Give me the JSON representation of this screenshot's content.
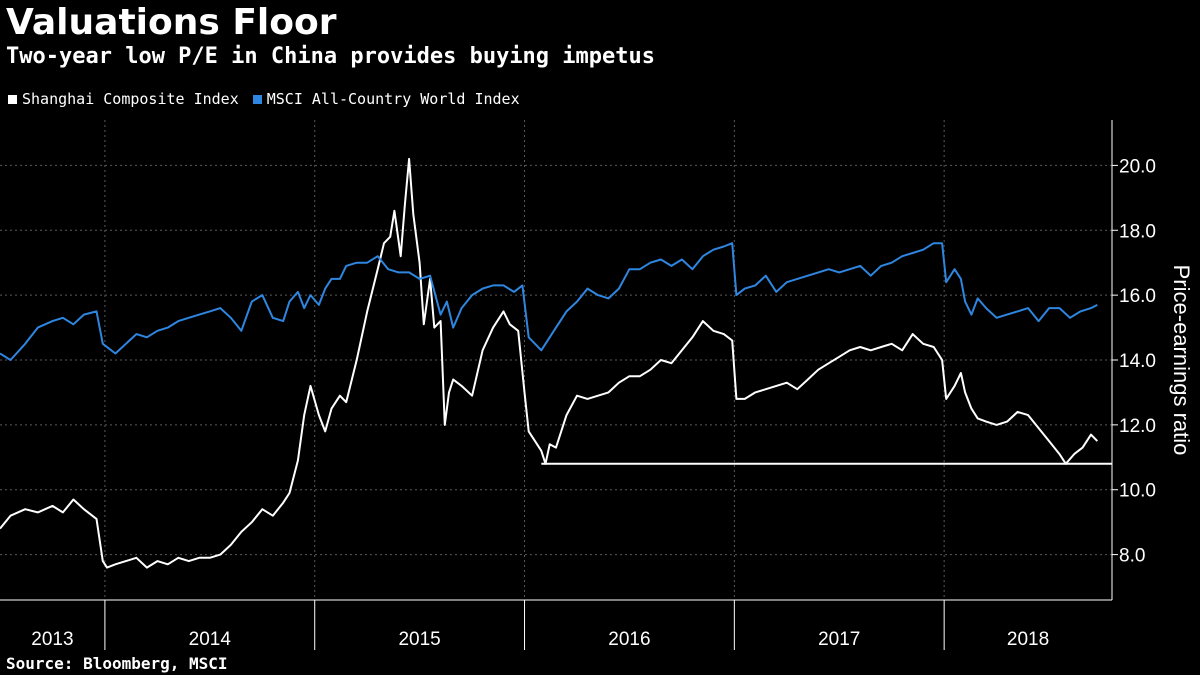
{
  "title": "Valuations Floor",
  "subtitle": "Two-year low P/E in China provides buying impetus",
  "source": "Source: Bloomberg, MSCI",
  "colors": {
    "background": "#000000",
    "shanghai": "#ffffff",
    "msci": "#2f86e0",
    "grid": "#5a5a5a"
  },
  "chart_data": {
    "type": "line",
    "title": "Valuations Floor",
    "subtitle": "Two-year low P/E in China provides buying impetus",
    "ylabel": "Price-earnings ratio",
    "xlabel": "",
    "ylim": [
      6.6,
      21.4
    ],
    "y_ticks": [
      8.0,
      10.0,
      12.0,
      14.0,
      16.0,
      18.0,
      20.0
    ],
    "y_tick_labels": [
      "8.0",
      "10.0",
      "12.0",
      "14.0",
      "16.0",
      "18.0",
      "20.0"
    ],
    "y_axis_side": "right",
    "x_range": [
      2013.5,
      2018.8
    ],
    "x_ticks": [
      2014,
      2015,
      2016,
      2017,
      2018
    ],
    "x_tick_labels": [
      "2013",
      "2014",
      "2015",
      "2016",
      "2017",
      "2018"
    ],
    "grid": true,
    "legend_position": "top-left",
    "series": [
      {
        "name": "Shanghai Composite Index",
        "color": "#ffffff",
        "x": [
          2013.5,
          2013.55,
          2013.62,
          2013.68,
          2013.75,
          2013.8,
          2013.85,
          2013.9,
          2013.96,
          2013.99,
          2014.01,
          2014.05,
          2014.1,
          2014.15,
          2014.2,
          2014.25,
          2014.3,
          2014.35,
          2014.4,
          2014.45,
          2014.5,
          2014.55,
          2014.6,
          2014.65,
          2014.7,
          2014.75,
          2014.8,
          2014.85,
          2014.88,
          2014.92,
          2014.95,
          2014.98,
          2015.02,
          2015.05,
          2015.08,
          2015.12,
          2015.15,
          2015.2,
          2015.25,
          2015.3,
          2015.33,
          2015.36,
          2015.38,
          2015.41,
          2015.43,
          2015.45,
          2015.47,
          2015.5,
          2015.52,
          2015.55,
          2015.57,
          2015.6,
          2015.62,
          2015.64,
          2015.66,
          2015.7,
          2015.75,
          2015.8,
          2015.85,
          2015.9,
          2015.93,
          2015.97,
          2016.0,
          2016.02,
          2016.05,
          2016.08,
          2016.1,
          2016.12,
          2016.15,
          2016.2,
          2016.25,
          2016.3,
          2016.35,
          2016.4,
          2016.45,
          2016.5,
          2016.55,
          2016.6,
          2016.65,
          2016.7,
          2016.75,
          2016.8,
          2016.85,
          2016.9,
          2016.95,
          2016.99,
          2017.01,
          2017.05,
          2017.1,
          2017.15,
          2017.2,
          2017.25,
          2017.3,
          2017.35,
          2017.4,
          2017.45,
          2017.5,
          2017.55,
          2017.6,
          2017.65,
          2017.7,
          2017.75,
          2017.8,
          2017.85,
          2017.9,
          2017.95,
          2017.99,
          2018.01,
          2018.05,
          2018.08,
          2018.1,
          2018.13,
          2018.16,
          2018.2,
          2018.25,
          2018.3,
          2018.35,
          2018.4,
          2018.45,
          2018.5,
          2018.55,
          2018.58,
          2018.62,
          2018.66,
          2018.7,
          2018.73
        ],
        "y": [
          8.8,
          9.2,
          9.4,
          9.3,
          9.5,
          9.3,
          9.7,
          9.4,
          9.1,
          7.8,
          7.6,
          7.7,
          7.8,
          7.9,
          7.6,
          7.8,
          7.7,
          7.9,
          7.8,
          7.9,
          7.9,
          8.0,
          8.3,
          8.7,
          9.0,
          9.4,
          9.2,
          9.6,
          9.9,
          10.9,
          12.3,
          13.2,
          12.3,
          11.8,
          12.5,
          12.9,
          12.7,
          14.0,
          15.5,
          16.8,
          17.6,
          17.8,
          18.6,
          17.2,
          18.8,
          20.2,
          18.5,
          17.0,
          15.1,
          16.5,
          15.0,
          15.2,
          12.0,
          13.0,
          13.4,
          13.2,
          12.9,
          14.3,
          15.0,
          15.5,
          15.1,
          14.9,
          13.0,
          11.8,
          11.5,
          11.2,
          10.8,
          11.4,
          11.3,
          12.3,
          12.9,
          12.8,
          12.9,
          13.0,
          13.3,
          13.5,
          13.5,
          13.7,
          14.0,
          13.9,
          14.3,
          14.7,
          15.2,
          14.9,
          14.8,
          14.6,
          12.8,
          12.8,
          13.0,
          13.1,
          13.2,
          13.3,
          13.1,
          13.4,
          13.7,
          13.9,
          14.1,
          14.3,
          14.4,
          14.3,
          14.4,
          14.5,
          14.3,
          14.8,
          14.5,
          14.4,
          14.0,
          12.8,
          13.2,
          13.6,
          13.0,
          12.5,
          12.2,
          12.1,
          12.0,
          12.1,
          12.4,
          12.3,
          11.9,
          11.5,
          11.1,
          10.8,
          11.1,
          11.3,
          11.7,
          11.5
        ]
      },
      {
        "name": "MSCI All-Country World Index",
        "color": "#2f86e0",
        "x": [
          2013.5,
          2013.55,
          2013.62,
          2013.68,
          2013.75,
          2013.8,
          2013.85,
          2013.9,
          2013.96,
          2013.99,
          2014.05,
          2014.1,
          2014.15,
          2014.2,
          2014.25,
          2014.3,
          2014.35,
          2014.4,
          2014.45,
          2014.5,
          2014.55,
          2014.6,
          2014.65,
          2014.7,
          2014.75,
          2014.8,
          2014.85,
          2014.88,
          2014.92,
          2014.95,
          2014.98,
          2015.02,
          2015.05,
          2015.08,
          2015.12,
          2015.15,
          2015.2,
          2015.25,
          2015.3,
          2015.35,
          2015.4,
          2015.45,
          2015.5,
          2015.55,
          2015.6,
          2015.63,
          2015.66,
          2015.7,
          2015.75,
          2015.8,
          2015.85,
          2015.9,
          2015.95,
          2015.99,
          2016.02,
          2016.05,
          2016.08,
          2016.1,
          2016.15,
          2016.2,
          2016.25,
          2016.3,
          2016.35,
          2016.4,
          2016.45,
          2016.5,
          2016.55,
          2016.6,
          2016.65,
          2016.7,
          2016.75,
          2016.8,
          2016.85,
          2016.9,
          2016.95,
          2016.99,
          2017.01,
          2017.05,
          2017.1,
          2017.15,
          2017.2,
          2017.25,
          2017.3,
          2017.35,
          2017.4,
          2017.45,
          2017.5,
          2017.55,
          2017.6,
          2017.65,
          2017.7,
          2017.75,
          2017.8,
          2017.85,
          2017.9,
          2017.95,
          2017.99,
          2018.01,
          2018.05,
          2018.08,
          2018.1,
          2018.13,
          2018.16,
          2018.2,
          2018.25,
          2018.3,
          2018.35,
          2018.4,
          2018.45,
          2018.5,
          2018.55,
          2018.6,
          2018.65,
          2018.7,
          2018.73
        ],
        "y": [
          14.2,
          14.0,
          14.5,
          15.0,
          15.2,
          15.3,
          15.1,
          15.4,
          15.5,
          14.5,
          14.2,
          14.5,
          14.8,
          14.7,
          14.9,
          15.0,
          15.2,
          15.3,
          15.4,
          15.5,
          15.6,
          15.3,
          14.9,
          15.8,
          16.0,
          15.3,
          15.2,
          15.8,
          16.1,
          15.6,
          16.0,
          15.7,
          16.2,
          16.5,
          16.5,
          16.9,
          17.0,
          17.0,
          17.2,
          16.8,
          16.7,
          16.7,
          16.5,
          16.6,
          15.4,
          15.8,
          15.0,
          15.6,
          16.0,
          16.2,
          16.3,
          16.3,
          16.1,
          16.3,
          14.7,
          14.5,
          14.3,
          14.5,
          15.0,
          15.5,
          15.8,
          16.2,
          16.0,
          15.9,
          16.2,
          16.8,
          16.8,
          17.0,
          17.1,
          16.9,
          17.1,
          16.8,
          17.2,
          17.4,
          17.5,
          17.6,
          16.0,
          16.2,
          16.3,
          16.6,
          16.1,
          16.4,
          16.5,
          16.6,
          16.7,
          16.8,
          16.7,
          16.8,
          16.9,
          16.6,
          16.9,
          17.0,
          17.2,
          17.3,
          17.4,
          17.6,
          17.6,
          16.4,
          16.8,
          16.5,
          15.8,
          15.4,
          15.9,
          15.6,
          15.3,
          15.4,
          15.5,
          15.6,
          15.2,
          15.6,
          15.6,
          15.3,
          15.5,
          15.6,
          15.7
        ]
      }
    ],
    "reference_line": {
      "y": 10.8,
      "x_start": 2016.08,
      "x_end": 2018.8,
      "color": "#ffffff"
    }
  }
}
